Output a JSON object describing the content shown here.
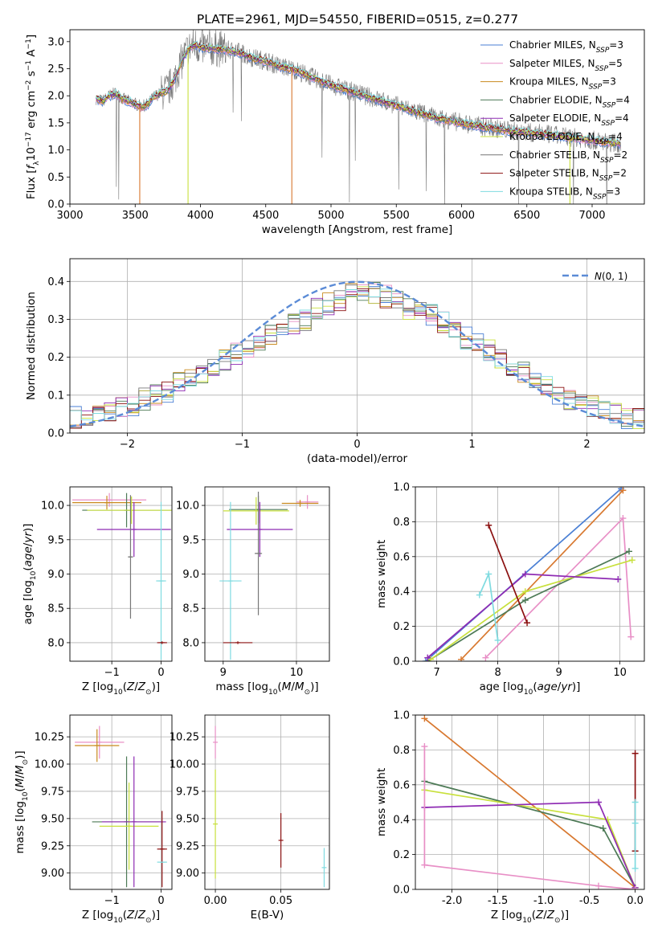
{
  "title": "PLATE=2961, MJD=54550, FIBERID=0515, z=0.277",
  "colors": {
    "chabrier_miles": "#4a7fd4",
    "salpeter_miles": "#e88fc6",
    "kroupa_miles": "#c98a1f",
    "chabrier_elodie": "#4d7a56",
    "salpeter_elodie": "#8e2bb3",
    "kroupa_elodie": "#c8e03c",
    "chabrier_stelib": "#777777",
    "salpeter_stelib": "#8b1010",
    "kroupa_stelib": "#7fdbe0",
    "normal_curve": "#5b8bd6",
    "orange_line": "#d8782f",
    "grid": "#b0b0b0"
  },
  "legend_models": [
    {
      "key": "chabrier_miles",
      "label": "Chabrier MILES, N",
      "sub": "SSP",
      "n": "=3"
    },
    {
      "key": "salpeter_miles",
      "label": "Salpeter MILES, N",
      "sub": "SSP",
      "n": "=5"
    },
    {
      "key": "kroupa_miles",
      "label": "Kroupa MILES, N",
      "sub": "SSP",
      "n": "=3"
    },
    {
      "key": "chabrier_elodie",
      "label": "Chabrier ELODIE, N",
      "sub": "SSP",
      "n": "=4"
    },
    {
      "key": "salpeter_elodie",
      "label": "Salpeter ELODIE, N",
      "sub": "SSP",
      "n": "=4"
    },
    {
      "key": "kroupa_elodie",
      "label": "Kroupa ELODIE, N",
      "sub": "SSP",
      "n": "=4"
    },
    {
      "key": "chabrier_stelib",
      "label": "Chabrier STELIB, N",
      "sub": "SSP",
      "n": "=2"
    },
    {
      "key": "salpeter_stelib",
      "label": "Salpeter STELIB, N",
      "sub": "SSP",
      "n": "=2"
    },
    {
      "key": "kroupa_stelib",
      "label": "Kroupa STELIB, N",
      "sub": "SSP",
      "n": "=3"
    }
  ],
  "chart_data": [
    {
      "id": "spectrum",
      "type": "line",
      "xlabel": "wavelength [Angstrom, rest frame]",
      "ylabel": "Flux [f_λ10^-17 erg cm^-2 s^-1 A^-1]",
      "xlim": [
        3000,
        7400
      ],
      "ylim": [
        0,
        3.22
      ],
      "xticks": [
        3000,
        3500,
        4000,
        4500,
        5000,
        5500,
        6000,
        6500,
        7000
      ],
      "yticks": [
        0.0,
        0.5,
        1.0,
        1.5,
        2.0,
        2.5,
        3.0
      ],
      "grid": false,
      "legend_position": "top-right",
      "continuum": {
        "x": [
          3200,
          3250,
          3300,
          3350,
          3400,
          3450,
          3500,
          3550,
          3600,
          3650,
          3700,
          3750,
          3800,
          3850,
          3900,
          3950,
          4000,
          4100,
          4200,
          4300,
          4400,
          4500,
          4600,
          4700,
          4800,
          4900,
          5000,
          5200,
          5400,
          5600,
          5800,
          6000,
          6200,
          6400,
          6600,
          6800,
          7000,
          7200
        ],
        "y": [
          1.95,
          1.9,
          2.0,
          2.05,
          1.95,
          1.9,
          1.85,
          1.8,
          1.85,
          2.0,
          2.05,
          2.1,
          2.3,
          2.6,
          2.85,
          2.95,
          2.9,
          2.88,
          2.85,
          2.8,
          2.7,
          2.65,
          2.55,
          2.5,
          2.4,
          2.3,
          2.2,
          2.05,
          1.9,
          1.75,
          1.6,
          1.5,
          1.42,
          1.35,
          1.3,
          1.25,
          1.18,
          1.12
        ]
      }
    },
    {
      "id": "residuals",
      "type": "histogram",
      "xlabel": "(data-model)/error",
      "ylabel": "Normed distribution",
      "xlim": [
        -2.5,
        2.5
      ],
      "ylim": [
        0,
        0.46
      ],
      "xticks": [
        -2,
        -1,
        0,
        1,
        2
      ],
      "yticks": [
        0.0,
        0.1,
        0.2,
        0.3,
        0.4
      ],
      "grid": true,
      "legend": "N(0, 1)",
      "legend_position": "top-right",
      "bin_width": 0.1,
      "hist": [
        0.04,
        0.04,
        0.05,
        0.06,
        0.07,
        0.07,
        0.09,
        0.1,
        0.11,
        0.13,
        0.14,
        0.16,
        0.18,
        0.19,
        0.21,
        0.22,
        0.23,
        0.26,
        0.27,
        0.29,
        0.3,
        0.33,
        0.34,
        0.35,
        0.37,
        0.38,
        0.37,
        0.36,
        0.35,
        0.33,
        0.32,
        0.31,
        0.29,
        0.28,
        0.25,
        0.24,
        0.22,
        0.2,
        0.18,
        0.16,
        0.14,
        0.12,
        0.1,
        0.09,
        0.08,
        0.07,
        0.06,
        0.05,
        0.04,
        0.04
      ]
    },
    {
      "id": "age_vs_Z",
      "type": "errorbar",
      "xlabel": "Z [log10(Z/Z⊙)]",
      "ylabel": "age  [log10(age/yr)]",
      "xlim": [
        -1.85,
        0.22
      ],
      "ylim": [
        7.73,
        10.27
      ],
      "xticks": [
        -1,
        0
      ],
      "yticks": [
        8.0,
        8.5,
        9.0,
        9.5,
        10.0
      ],
      "grid": true,
      "points": [
        {
          "color": "salpeter_miles",
          "x": -1.05,
          "xerr": 0.75,
          "y": 10.08,
          "yerr": 0.1
        },
        {
          "color": "kroupa_miles",
          "x": -1.1,
          "xerr": 0.7,
          "y": 10.04,
          "yerr": 0.1
        },
        {
          "color": "chabrier_elodie",
          "x": -0.7,
          "xerr": 0.9,
          "y": 9.93,
          "yerr": 0.25
        },
        {
          "color": "kroupa_elodie",
          "x": -0.6,
          "xerr": 0.9,
          "y": 9.93,
          "yerr": 0.2
        },
        {
          "color": "salpeter_elodie",
          "x": -0.55,
          "xerr": 0.75,
          "y": 9.65,
          "yerr": 0.4
        },
        {
          "color": "chabrier_stelib",
          "x": -0.62,
          "xerr": 0.05,
          "y": 9.25,
          "yerr": 0.9
        },
        {
          "color": "kroupa_stelib",
          "x": 0.0,
          "xerr": 0.1,
          "y": 8.9,
          "yerr": 1.15
        },
        {
          "color": "salpeter_stelib",
          "x": 0.02,
          "xerr": 0.1,
          "y": 8.0,
          "yerr": 0.02
        }
      ]
    },
    {
      "id": "age_vs_mass",
      "type": "errorbar",
      "xlabel": "mass [log10(M/M⊙)]",
      "ylabel": "",
      "xlim": [
        8.75,
        10.45
      ],
      "ylim": [
        7.73,
        10.27
      ],
      "xticks": [
        9,
        10
      ],
      "yticks": [
        8.0,
        8.5,
        9.0,
        9.5,
        10.0
      ],
      "grid": true,
      "points": [
        {
          "color": "salpeter_miles",
          "x": 10.15,
          "xerr": 0.15,
          "y": 10.05,
          "yerr": 0.1
        },
        {
          "color": "kroupa_miles",
          "x": 10.05,
          "xerr": 0.25,
          "y": 10.03,
          "yerr": 0.05
        },
        {
          "color": "chabrier_elodie",
          "x": 9.48,
          "xerr": 0.4,
          "y": 9.94,
          "yerr": 0.2
        },
        {
          "color": "kroupa_elodie",
          "x": 9.45,
          "xerr": 0.45,
          "y": 9.92,
          "yerr": 0.2
        },
        {
          "color": "salpeter_elodie",
          "x": 9.5,
          "xerr": 0.45,
          "y": 9.65,
          "yerr": 0.4
        },
        {
          "color": "chabrier_stelib",
          "x": 9.48,
          "xerr": 0.05,
          "y": 9.3,
          "yerr": 0.9
        },
        {
          "color": "kroupa_stelib",
          "x": 9.1,
          "xerr": 0.15,
          "y": 8.9,
          "yerr": 1.15
        },
        {
          "color": "salpeter_stelib",
          "x": 9.2,
          "xerr": 0.2,
          "y": 8.0,
          "yerr": 0.02
        }
      ]
    },
    {
      "id": "weight_vs_age",
      "type": "line",
      "xlabel": "age  [log10(age/yr)]",
      "ylabel": "mass weight",
      "xlim": [
        6.65,
        10.4
      ],
      "ylim": [
        0,
        1.0
      ],
      "xticks": [
        7,
        8,
        9,
        10
      ],
      "yticks": [
        0.0,
        0.2,
        0.4,
        0.6,
        0.8,
        1.0
      ],
      "grid": true,
      "series": [
        {
          "color": "chabrier_miles",
          "x": [
            6.82,
            10.02
          ],
          "y": [
            0.0,
            0.99
          ]
        },
        {
          "color": "orange_line",
          "x": [
            7.4,
            10.05
          ],
          "y": [
            0.01,
            0.98
          ]
        },
        {
          "color": "salpeter_miles",
          "x": [
            7.8,
            10.05,
            10.18
          ],
          "y": [
            0.02,
            0.82,
            0.14
          ]
        },
        {
          "color": "chabrier_elodie",
          "x": [
            6.85,
            8.45,
            10.15
          ],
          "y": [
            0.0,
            0.35,
            0.63
          ]
        },
        {
          "color": "kroupa_elodie",
          "x": [
            6.9,
            8.45,
            10.2
          ],
          "y": [
            0.01,
            0.4,
            0.58
          ]
        },
        {
          "color": "salpeter_elodie",
          "x": [
            6.85,
            8.45,
            9.97
          ],
          "y": [
            0.02,
            0.5,
            0.47
          ]
        },
        {
          "color": "salpeter_stelib",
          "x": [
            7.85,
            8.48
          ],
          "y": [
            0.78,
            0.22
          ]
        },
        {
          "color": "kroupa_stelib",
          "x": [
            7.7,
            7.85,
            8.0
          ],
          "y": [
            0.38,
            0.5,
            0.12
          ]
        }
      ]
    },
    {
      "id": "mass_vs_Z",
      "type": "errorbar",
      "xlabel": "Z [log10(Z/Z⊙)]",
      "ylabel": "mass [log10(M/M⊙)]",
      "xlim": [
        -1.85,
        0.22
      ],
      "ylim": [
        8.85,
        10.45
      ],
      "xticks": [
        -1,
        0
      ],
      "yticks": [
        9.0,
        9.25,
        9.5,
        9.75,
        10.0,
        10.25
      ],
      "grid": true,
      "points": [
        {
          "color": "salpeter_miles",
          "x": -1.25,
          "xerr": 0.5,
          "y": 10.2,
          "yerr": 0.15
        },
        {
          "color": "kroupa_miles",
          "x": -1.3,
          "xerr": 0.45,
          "y": 10.17,
          "yerr": 0.15
        },
        {
          "color": "chabrier_elodie",
          "x": -0.7,
          "xerr": 0.7,
          "y": 9.47,
          "yerr": 0.6
        },
        {
          "color": "kroupa_elodie",
          "x": -0.65,
          "xerr": 0.6,
          "y": 9.43,
          "yerr": 0.4
        },
        {
          "color": "salpeter_elodie",
          "x": -0.55,
          "xerr": 0.65,
          "y": 9.47,
          "yerr": 0.6
        },
        {
          "color": "salpeter_stelib",
          "x": 0.02,
          "xerr": 0.1,
          "y": 9.22,
          "yerr": 0.35
        },
        {
          "color": "kroupa_stelib",
          "x": 0.02,
          "xerr": 0.1,
          "y": 9.1,
          "yerr": 0.0
        }
      ]
    },
    {
      "id": "mass_vs_EBV",
      "type": "errorbar",
      "xlabel": "E(B-V)",
      "ylabel": "",
      "xlim": [
        -0.008,
        0.087
      ],
      "ylim": [
        8.85,
        10.45
      ],
      "xticks": [
        0.0,
        0.05
      ],
      "yticks": [
        9.0,
        9.25,
        9.5,
        9.75,
        10.0,
        10.25
      ],
      "grid": true,
      "points": [
        {
          "color": "salpeter_miles",
          "x": 0.0,
          "xerr": 0.0,
          "y": 10.2,
          "yerr": 0.15
        },
        {
          "color": "kroupa_elodie",
          "x": 0.0,
          "xerr": 0.0,
          "y": 9.45,
          "yerr": 0.5
        },
        {
          "color": "salpeter_stelib",
          "x": 0.05,
          "xerr": 0.0,
          "y": 9.3,
          "yerr": 0.25
        },
        {
          "color": "kroupa_stelib",
          "x": 0.083,
          "xerr": 0.0,
          "y": 9.05,
          "yerr": 0.18
        }
      ]
    },
    {
      "id": "weight_vs_Z",
      "type": "line",
      "xlabel": "Z [log10(Z/Z⊙)]",
      "ylabel": "mass weight",
      "xlim": [
        -2.4,
        0.1
      ],
      "ylim": [
        0,
        1.0
      ],
      "xticks": [
        -2.0,
        -1.5,
        -1.0,
        -0.5,
        0.0
      ],
      "yticks": [
        0.0,
        0.2,
        0.4,
        0.6,
        0.8,
        1.0
      ],
      "grid": true,
      "series": [
        {
          "color": "orange_line",
          "x": [
            -2.3,
            0.0
          ],
          "y": [
            0.98,
            0.01
          ]
        },
        {
          "color": "chabrier_elodie",
          "x": [
            -2.3,
            -0.35,
            0.0
          ],
          "y": [
            0.62,
            0.35,
            0.01
          ]
        },
        {
          "color": "kroupa_elodie",
          "x": [
            -2.3,
            -0.3,
            0.0
          ],
          "y": [
            0.57,
            0.4,
            0.01
          ]
        },
        {
          "color": "salpeter_elodie",
          "x": [
            -2.3,
            -0.4,
            0.0
          ],
          "y": [
            0.47,
            0.5,
            0.01
          ]
        },
        {
          "color": "salpeter_miles",
          "x": [
            -2.3,
            -2.3,
            -0.4,
            0.0
          ],
          "y": [
            0.82,
            0.14,
            0.02,
            0.0
          ]
        },
        {
          "color": "salpeter_stelib",
          "x": [
            0.0,
            0.0
          ],
          "y": [
            0.78,
            0.22
          ]
        },
        {
          "color": "kroupa_stelib",
          "x": [
            0.0,
            0.0,
            0.0
          ],
          "y": [
            0.5,
            0.38,
            0.12
          ]
        }
      ]
    }
  ]
}
